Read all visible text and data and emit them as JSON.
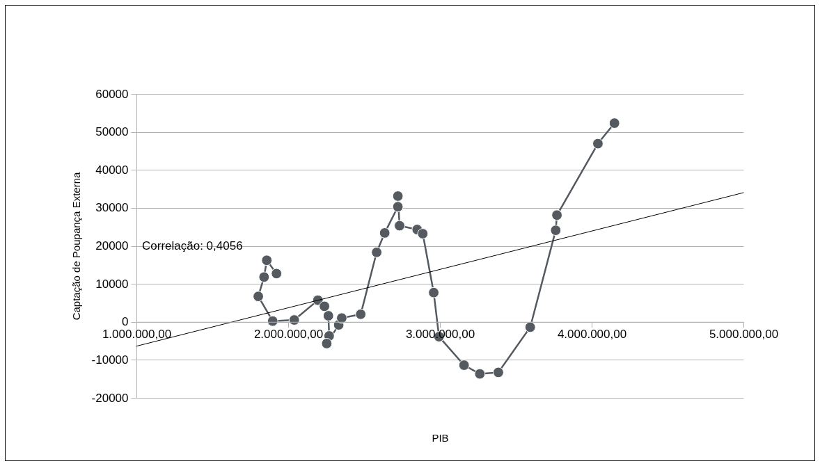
{
  "chart_data": {
    "type": "line",
    "xlabel": "PIB",
    "ylabel": "Captação de Poupança Externa",
    "annotations": [
      "Correlação: 0,4056"
    ],
    "xlim": [
      1000000,
      5000000
    ],
    "xticks": [
      {
        "value": 1000000,
        "label": "1.000.000,00"
      },
      {
        "value": 2000000,
        "label": "2.000.000,00"
      },
      {
        "value": 3000000,
        "label": "3.000.000,00"
      },
      {
        "value": 4000000,
        "label": "4.000.000,00"
      },
      {
        "value": 5000000,
        "label": "5.000.000,00"
      }
    ],
    "ylim": [
      -20000,
      60000
    ],
    "yticks": [
      -20000,
      -10000,
      0,
      10000,
      20000,
      30000,
      40000,
      50000,
      60000
    ],
    "grid": "y",
    "marker": "circle",
    "series": [
      {
        "color": "#555a60",
        "x": [
          1923000,
          1859000,
          1841000,
          1803000,
          1898000,
          2040000,
          2196000,
          2239000,
          2265000,
          2270000,
          2254000,
          2333000,
          2353000,
          2478000,
          2583000,
          2636000,
          2723000,
          2723000,
          2734000,
          2850000,
          2887000,
          2959000,
          2994000,
          3159000,
          3263000,
          3385000,
          3595000,
          3763000,
          3771000,
          4041000,
          4150000
        ],
        "values": [
          12700,
          16200,
          11800,
          6700,
          200,
          500,
          5700,
          4100,
          1600,
          -3700,
          -5700,
          -800,
          1000,
          2000,
          18300,
          23400,
          30300,
          33100,
          25300,
          24300,
          23200,
          7700,
          -3900,
          -11400,
          -13700,
          -13300,
          -1400,
          24100,
          28100,
          46900,
          52300
        ]
      },
      {
        "color": "#000000",
        "marker": "none",
        "x": [
          1000000,
          5000000
        ],
        "values": [
          -6400,
          34000
        ]
      }
    ]
  }
}
